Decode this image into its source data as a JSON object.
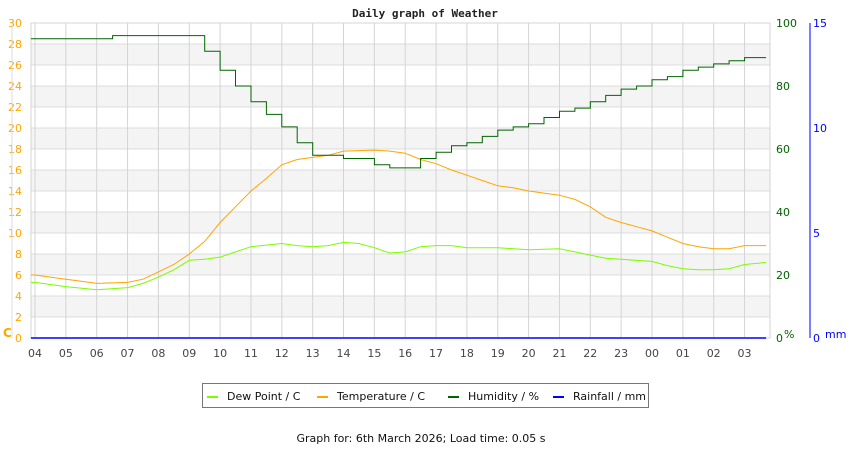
{
  "chart_data": {
    "type": "line",
    "title": "Daily graph of Weather",
    "footer": "Graph for: 6th March 2026; Load time: 0.05 s",
    "x_tick_labels": [
      "04",
      "05",
      "06",
      "07",
      "08",
      "09",
      "10",
      "11",
      "12",
      "13",
      "14",
      "15",
      "16",
      "17",
      "18",
      "19",
      "20",
      "21",
      "22",
      "23",
      "00",
      "01",
      "02",
      "03"
    ],
    "x_range": [
      "03:52",
      "03:42"
    ],
    "grid": true,
    "legend_placement": "bottom",
    "axes": {
      "left": {
        "label": "C",
        "range": [
          0,
          30
        ],
        "ticks": [
          0,
          2,
          4,
          6,
          8,
          10,
          12,
          14,
          16,
          18,
          20,
          22,
          24,
          26,
          28,
          30
        ],
        "color": "#ffa500"
      },
      "right_humidity": {
        "label": "%",
        "range": [
          0,
          100
        ],
        "ticks": [
          0,
          20,
          40,
          60,
          80,
          100
        ],
        "color": "#006400"
      },
      "right_rainfall": {
        "label": "mm",
        "range": [
          0,
          15
        ],
        "ticks": [
          0,
          5,
          10,
          15
        ],
        "color": "#0000ff"
      }
    },
    "series": [
      {
        "name": "Dew Point / C",
        "axis": "left",
        "color": "#7cfc00",
        "points": [
          [
            "03:52",
            5.3
          ],
          [
            "04:00",
            5.3
          ],
          [
            "05:00",
            4.9
          ],
          [
            "06:00",
            4.6
          ],
          [
            "07:00",
            4.8
          ],
          [
            "07:30",
            5.2
          ],
          [
            "08:00",
            5.8
          ],
          [
            "08:30",
            6.5
          ],
          [
            "09:00",
            7.4
          ],
          [
            "09:30",
            7.5
          ],
          [
            "10:00",
            7.7
          ],
          [
            "10:30",
            8.2
          ],
          [
            "11:00",
            8.7
          ],
          [
            "12:00",
            9.0
          ],
          [
            "12:30",
            8.8
          ],
          [
            "13:00",
            8.7
          ],
          [
            "13:30",
            8.8
          ],
          [
            "14:00",
            9.1
          ],
          [
            "14:30",
            9.0
          ],
          [
            "15:00",
            8.6
          ],
          [
            "15:30",
            8.1
          ],
          [
            "16:00",
            8.2
          ],
          [
            "16:30",
            8.7
          ],
          [
            "17:00",
            8.8
          ],
          [
            "17:30",
            8.8
          ],
          [
            "18:00",
            8.6
          ],
          [
            "19:00",
            8.6
          ],
          [
            "20:00",
            8.4
          ],
          [
            "21:00",
            8.5
          ],
          [
            "21:30",
            8.2
          ],
          [
            "22:00",
            7.9
          ],
          [
            "22:30",
            7.6
          ],
          [
            "23:00",
            7.5
          ],
          [
            "00:00",
            7.3
          ],
          [
            "00:30",
            6.9
          ],
          [
            "01:00",
            6.6
          ],
          [
            "01:30",
            6.5
          ],
          [
            "02:00",
            6.5
          ],
          [
            "02:30",
            6.6
          ],
          [
            "03:00",
            7.0
          ],
          [
            "03:42",
            7.2
          ]
        ]
      },
      {
        "name": "Temperature / C",
        "axis": "left",
        "color": "#ffa500",
        "points": [
          [
            "03:52",
            6.0
          ],
          [
            "04:00",
            6.0
          ],
          [
            "05:00",
            5.6
          ],
          [
            "05:30",
            5.4
          ],
          [
            "06:00",
            5.2
          ],
          [
            "07:00",
            5.3
          ],
          [
            "07:30",
            5.6
          ],
          [
            "08:00",
            6.3
          ],
          [
            "08:30",
            7.0
          ],
          [
            "09:00",
            8.0
          ],
          [
            "09:30",
            9.2
          ],
          [
            "10:00",
            11.0
          ],
          [
            "10:30",
            12.5
          ],
          [
            "11:00",
            14.0
          ],
          [
            "11:30",
            15.2
          ],
          [
            "12:00",
            16.5
          ],
          [
            "12:30",
            17.0
          ],
          [
            "13:00",
            17.2
          ],
          [
            "13:30",
            17.4
          ],
          [
            "14:00",
            17.8
          ],
          [
            "15:00",
            17.9
          ],
          [
            "15:30",
            17.8
          ],
          [
            "16:00",
            17.6
          ],
          [
            "16:30",
            17.0
          ],
          [
            "17:00",
            16.6
          ],
          [
            "17:30",
            16.0
          ],
          [
            "18:00",
            15.5
          ],
          [
            "18:30",
            15.0
          ],
          [
            "19:00",
            14.5
          ],
          [
            "19:30",
            14.3
          ],
          [
            "20:00",
            14.0
          ],
          [
            "21:00",
            13.6
          ],
          [
            "21:30",
            13.2
          ],
          [
            "22:00",
            12.5
          ],
          [
            "22:30",
            11.5
          ],
          [
            "23:00",
            11.0
          ],
          [
            "23:30",
            10.6
          ],
          [
            "00:00",
            10.2
          ],
          [
            "00:30",
            9.6
          ],
          [
            "01:00",
            9.0
          ],
          [
            "01:30",
            8.7
          ],
          [
            "02:00",
            8.5
          ],
          [
            "02:30",
            8.5
          ],
          [
            "03:00",
            8.8
          ],
          [
            "03:42",
            8.8
          ]
        ]
      },
      {
        "name": "Humidity / %",
        "axis": "right_humidity",
        "color": "#006400",
        "points": [
          [
            "03:52",
            95
          ],
          [
            "06:30",
            95
          ],
          [
            "06:31",
            96
          ],
          [
            "08:50",
            96
          ],
          [
            "09:30",
            91
          ],
          [
            "10:00",
            85
          ],
          [
            "10:30",
            80
          ],
          [
            "11:00",
            75
          ],
          [
            "11:30",
            71
          ],
          [
            "12:00",
            67
          ],
          [
            "12:30",
            62
          ],
          [
            "13:00",
            58
          ],
          [
            "14:00",
            57
          ],
          [
            "14:30",
            57
          ],
          [
            "15:00",
            55
          ],
          [
            "15:30",
            54
          ],
          [
            "16:00",
            54
          ],
          [
            "16:30",
            57
          ],
          [
            "17:00",
            59
          ],
          [
            "17:30",
            61
          ],
          [
            "18:00",
            62
          ],
          [
            "18:30",
            64
          ],
          [
            "19:00",
            66
          ],
          [
            "19:30",
            67
          ],
          [
            "20:00",
            68
          ],
          [
            "20:30",
            70
          ],
          [
            "21:00",
            72
          ],
          [
            "21:30",
            73
          ],
          [
            "22:00",
            75
          ],
          [
            "22:30",
            77
          ],
          [
            "23:00",
            79
          ],
          [
            "23:30",
            80
          ],
          [
            "00:00",
            82
          ],
          [
            "00:30",
            83
          ],
          [
            "01:00",
            85
          ],
          [
            "01:30",
            86
          ],
          [
            "02:00",
            87
          ],
          [
            "02:30",
            88
          ],
          [
            "03:00",
            89
          ],
          [
            "03:42",
            89
          ]
        ]
      },
      {
        "name": "Rainfall / mm",
        "axis": "right_rainfall",
        "color": "#0000ff",
        "points": [
          [
            "03:52",
            0
          ],
          [
            "03:42",
            0
          ]
        ]
      }
    ]
  }
}
